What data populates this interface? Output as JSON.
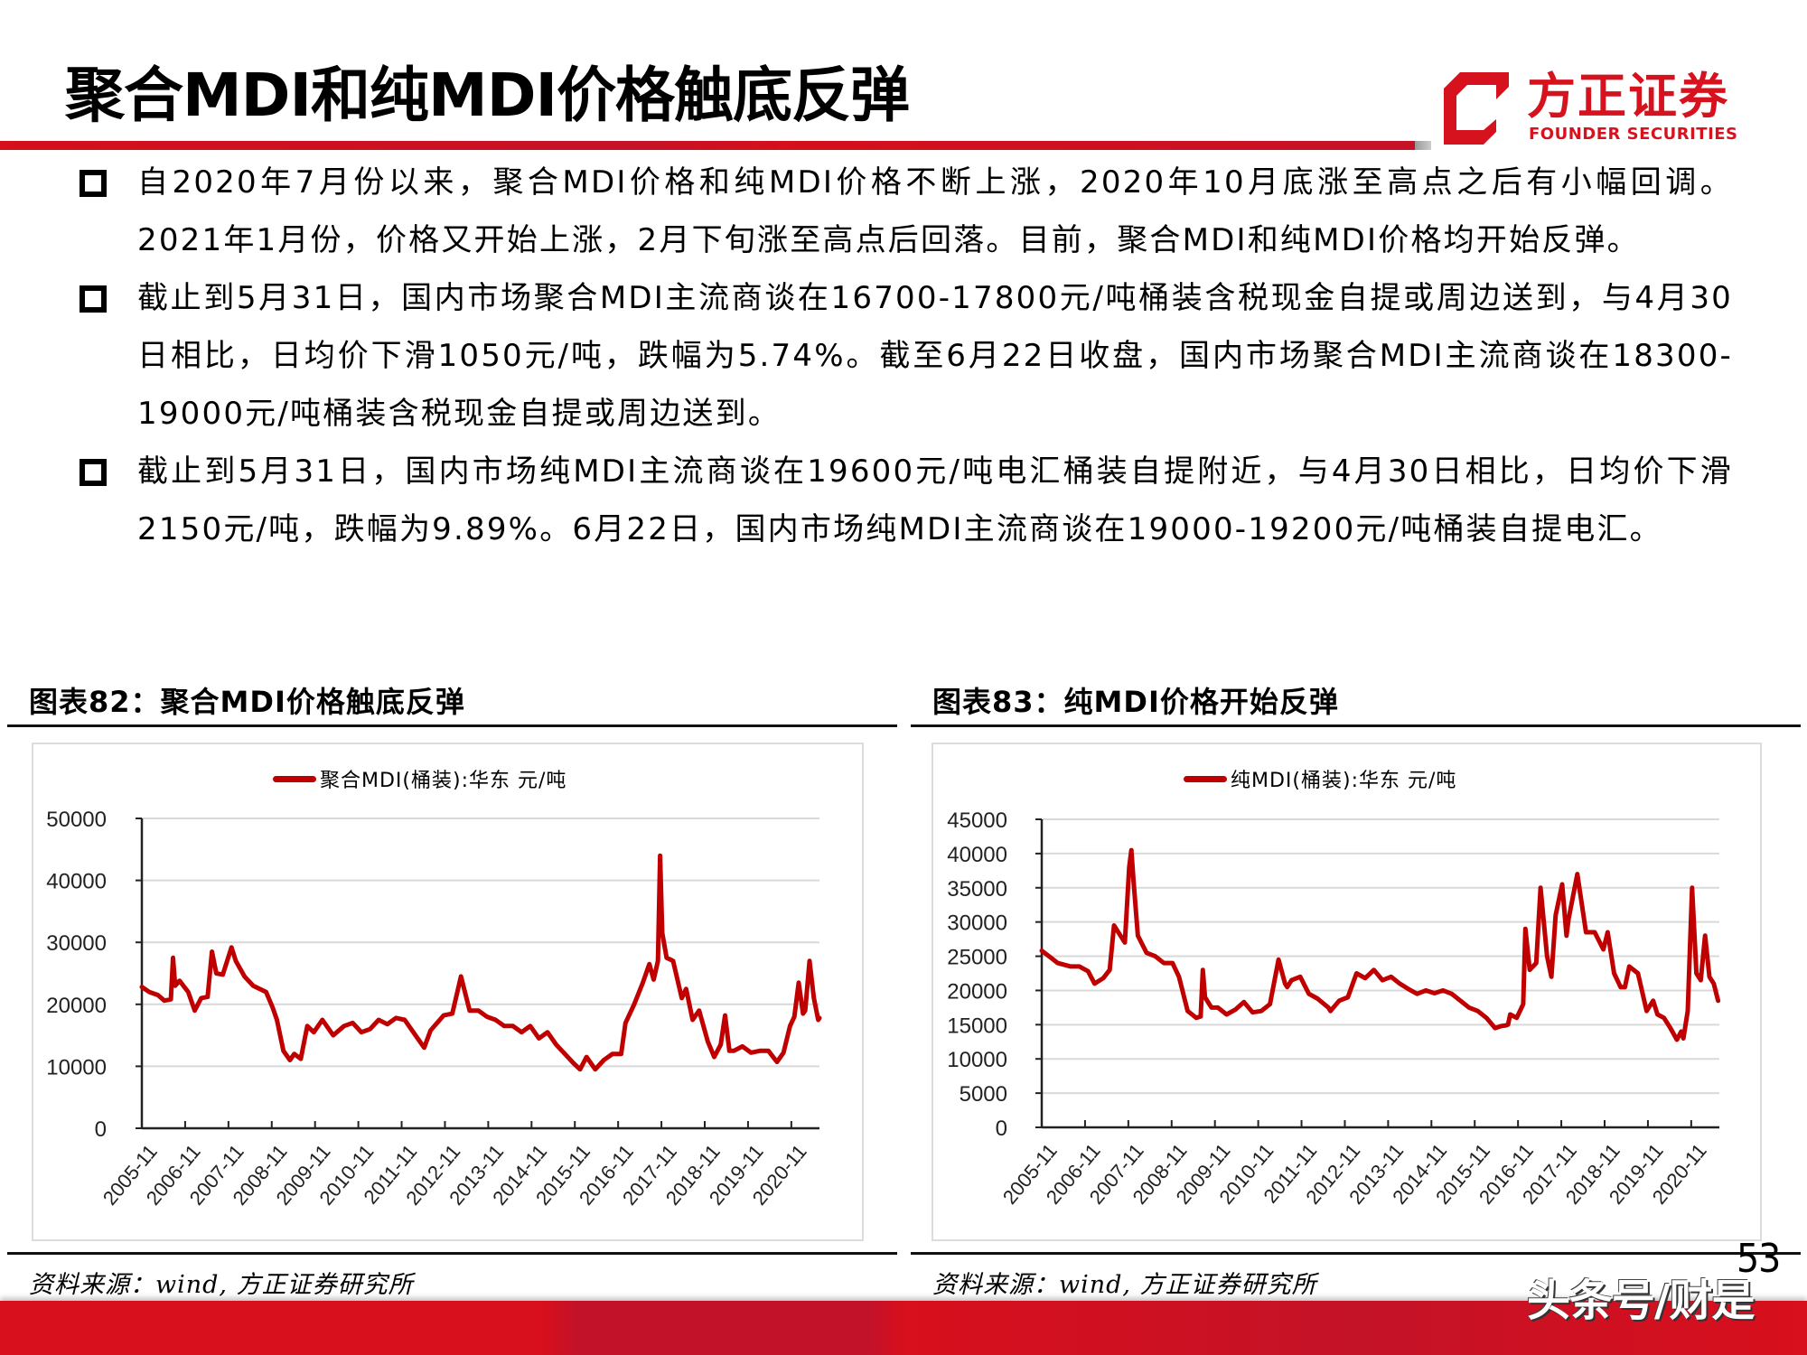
{
  "header": {
    "title": "聚合MDI和纯MDI价格触底反弹",
    "logo_cn": "方正证券",
    "logo_en": "FOUNDER SECURITIES",
    "brand_color": "#d6121e"
  },
  "bullets": [
    {
      "text": "自2020年7月份以来，聚合MDI价格和纯MDI价格不断上涨，2020年10月底涨至高点之后有小幅回调。2021年1月份，价格又开始上涨，2月下旬涨至高点后回落。目前，聚合MDI和纯MDI价格均开始反弹。"
    },
    {
      "text": "截止到5月31日，国内市场聚合MDI主流商谈在16700-17800元/吨桶装含税现金自提或周边送到，与4月30日相比，日均价下滑1050元/吨，跌幅为5.74%。截至6月22日收盘，国内市场聚合MDI主流商谈在18300-19000元/吨桶装含税现金自提或周边送到。"
    },
    {
      "text": "截止到5月31日，国内市场纯MDI主流商谈在19600元/吨电汇桶装自提附近，与4月30日相比，日均价下滑2150元/吨，跌幅为9.89%。6月22日，国内市场纯MDI主流商谈在19000-19200元/吨桶装自提电汇。"
    }
  ],
  "figures": [
    {
      "title": "图表82：聚合MDI价格触底反弹",
      "legend": "聚合MDI(桶装):华东  元/吨",
      "source": "资料来源：wind, 方正证券研究所"
    },
    {
      "title": "图表83：纯MDI价格开始反弹",
      "legend": "纯MDI(桶装):华东  元/吨",
      "source": "资料来源：wind, 方正证券研究所"
    }
  ],
  "footer": {
    "page_number": "53",
    "watermark": "头条号/财是"
  },
  "chart_data": [
    {
      "type": "line",
      "title": "图表82：聚合MDI价格触底反弹",
      "series_name": "聚合MDI(桶装):华东 元/吨",
      "line_color": "#c00000",
      "xlabel": "",
      "ylabel": "元/吨",
      "ylim": [
        0,
        50000
      ],
      "yticks": [
        0,
        10000,
        20000,
        30000,
        40000,
        50000
      ],
      "xticks": [
        "2005-11",
        "2006-11",
        "2007-11",
        "2008-11",
        "2009-11",
        "2010-11",
        "2011-11",
        "2012-11",
        "2013-11",
        "2014-11",
        "2015-11",
        "2016-11",
        "2017-11",
        "2018-11",
        "2019-11",
        "2020-11"
      ],
      "grid": true,
      "legend_position": "top",
      "x": [
        2005.83,
        2006.0,
        2006.2,
        2006.35,
        2006.5,
        2006.55,
        2006.6,
        2006.7,
        2006.9,
        2007.05,
        2007.2,
        2007.35,
        2007.45,
        2007.55,
        2007.7,
        2007.9,
        2008.0,
        2008.2,
        2008.4,
        2008.55,
        2008.7,
        2008.85,
        2008.95,
        2009.1,
        2009.25,
        2009.35,
        2009.5,
        2009.65,
        2009.8,
        2010.0,
        2010.25,
        2010.5,
        2010.7,
        2010.9,
        2011.1,
        2011.3,
        2011.5,
        2011.7,
        2011.9,
        2012.1,
        2012.35,
        2012.5,
        2012.55,
        2012.65,
        2012.8,
        2013.0,
        2013.2,
        2013.4,
        2013.6,
        2013.8,
        2014.0,
        2014.2,
        2014.4,
        2014.6,
        2014.8,
        2015.0,
        2015.2,
        2015.4,
        2015.6,
        2015.8,
        2015.95,
        2016.1,
        2016.3,
        2016.5,
        2016.7,
        2016.9,
        2017.0,
        2017.2,
        2017.4,
        2017.55,
        2017.65,
        2017.75,
        2017.8,
        2017.85,
        2017.95,
        2018.1,
        2018.3,
        2018.4,
        2018.55,
        2018.7,
        2018.9,
        2019.05,
        2019.2,
        2019.3,
        2019.4,
        2019.5,
        2019.7,
        2019.9,
        2020.1,
        2020.3,
        2020.5,
        2020.65,
        2020.8,
        2020.9,
        2021.0,
        2021.1,
        2021.15,
        2021.25,
        2021.35,
        2021.45,
        2021.48
      ],
      "values": [
        22800,
        22000,
        21500,
        20600,
        20800,
        27500,
        23000,
        23800,
        22000,
        19000,
        21000,
        21200,
        28500,
        25000,
        24800,
        29200,
        27000,
        24500,
        23000,
        22500,
        22000,
        19500,
        17500,
        12500,
        11000,
        12000,
        11200,
        16500,
        15500,
        17500,
        15000,
        16500,
        17000,
        15500,
        16000,
        17500,
        16800,
        17800,
        17500,
        15500,
        13000,
        15800,
        16200,
        17000,
        18200,
        18500,
        24500,
        19000,
        19000,
        18000,
        17500,
        16500,
        16500,
        15500,
        16500,
        14500,
        15500,
        13500,
        12000,
        10500,
        9500,
        11500,
        9500,
        11000,
        12000,
        12000,
        17000,
        20000,
        23500,
        26500,
        24000,
        27000,
        44000,
        31500,
        27500,
        27000,
        21000,
        22500,
        17500,
        19000,
        14000,
        11500,
        13500,
        18200,
        12500,
        12500,
        13200,
        12200,
        12500,
        12500,
        10700,
        12200,
        16500,
        18000,
        23500,
        18500,
        19000,
        27000,
        21000,
        17500,
        17800
      ]
    },
    {
      "type": "line",
      "title": "图表83：纯MDI价格开始反弹",
      "series_name": "纯MDI(桶装):华东 元/吨",
      "line_color": "#c00000",
      "xlabel": "",
      "ylabel": "元/吨",
      "ylim": [
        0,
        45000
      ],
      "yticks": [
        0,
        5000,
        10000,
        15000,
        20000,
        25000,
        30000,
        35000,
        40000,
        45000
      ],
      "xticks": [
        "2005-11",
        "2006-11",
        "2007-11",
        "2008-11",
        "2009-11",
        "2010-11",
        "2011-11",
        "2012-11",
        "2013-11",
        "2014-11",
        "2015-11",
        "2016-11",
        "2017-11",
        "2018-11",
        "2019-11",
        "2020-11"
      ],
      "grid": true,
      "legend_position": "top",
      "x": [
        2005.83,
        2006.0,
        2006.2,
        2006.5,
        2006.7,
        2006.9,
        2007.05,
        2007.25,
        2007.4,
        2007.5,
        2007.65,
        2007.75,
        2007.85,
        2007.9,
        2007.95,
        2008.05,
        2008.25,
        2008.45,
        2008.65,
        2008.85,
        2009.0,
        2009.2,
        2009.4,
        2009.5,
        2009.55,
        2009.6,
        2009.75,
        2009.9,
        2010.1,
        2010.3,
        2010.5,
        2010.7,
        2010.9,
        2011.1,
        2011.3,
        2011.45,
        2011.5,
        2011.6,
        2011.8,
        2012.0,
        2012.2,
        2012.45,
        2012.5,
        2012.7,
        2012.9,
        2013.1,
        2013.3,
        2013.5,
        2013.7,
        2013.9,
        2014.1,
        2014.3,
        2014.5,
        2014.7,
        2014.9,
        2015.1,
        2015.3,
        2015.5,
        2015.7,
        2015.9,
        2016.1,
        2016.3,
        2016.45,
        2016.55,
        2016.6,
        2016.65,
        2016.8,
        2016.95,
        2017.0,
        2017.1,
        2017.25,
        2017.35,
        2017.5,
        2017.6,
        2017.7,
        2017.85,
        2017.95,
        2018.0,
        2018.2,
        2018.4,
        2018.6,
        2018.8,
        2018.9,
        2019.05,
        2019.2,
        2019.3,
        2019.4,
        2019.6,
        2019.8,
        2019.95,
        2020.05,
        2020.2,
        2020.35,
        2020.5,
        2020.6,
        2020.65,
        2020.75,
        2020.85,
        2020.95,
        2021.05,
        2021.15,
        2021.25,
        2021.35,
        2021.45
      ],
      "values": [
        25800,
        25000,
        24000,
        23500,
        23500,
        22800,
        21000,
        21800,
        23000,
        29500,
        28000,
        27000,
        38000,
        40500,
        36000,
        28000,
        25500,
        25000,
        24000,
        24000,
        22000,
        17000,
        16000,
        16200,
        23000,
        19000,
        17500,
        17500,
        16500,
        17200,
        18300,
        16800,
        17000,
        18000,
        24500,
        21000,
        20500,
        21500,
        22000,
        19500,
        18800,
        17500,
        17000,
        18500,
        19000,
        22500,
        21800,
        23000,
        21500,
        22000,
        21000,
        20200,
        19500,
        20000,
        19600,
        20000,
        19500,
        18500,
        17500,
        17000,
        16000,
        14500,
        14800,
        14900,
        15000,
        16500,
        16000,
        18000,
        29000,
        23000,
        24000,
        35000,
        25000,
        22000,
        31000,
        35500,
        28000,
        30500,
        37000,
        28500,
        28500,
        26000,
        28500,
        22500,
        20500,
        20500,
        23500,
        22500,
        17000,
        18500,
        16500,
        16000,
        14500,
        12800,
        14000,
        13000,
        17000,
        35000,
        22500,
        21500,
        28000,
        22000,
        21000,
        18500
      ]
    }
  ]
}
